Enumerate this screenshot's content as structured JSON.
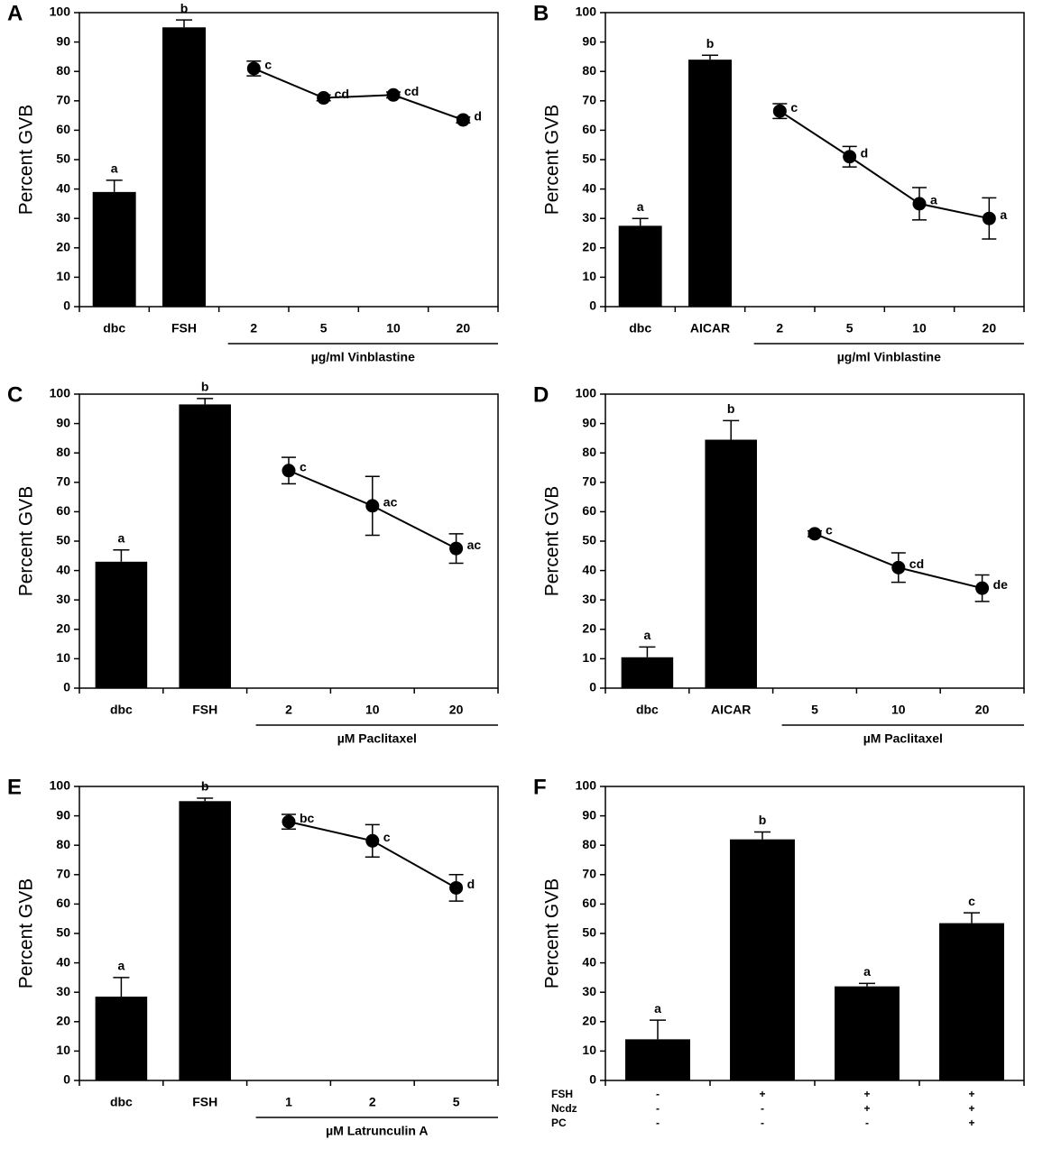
{
  "chart_data": [
    {
      "panel": "A",
      "type": "combo",
      "ylabel": "Percent GVB",
      "ylim": [
        0,
        100
      ],
      "yticks": [
        0,
        10,
        20,
        30,
        40,
        50,
        60,
        70,
        80,
        90,
        100
      ],
      "categories": [
        "dbc",
        "FSH",
        "2",
        "5",
        "10",
        "20"
      ],
      "group_label": "µg/ml Vinblastine",
      "bars": {
        "values": [
          39,
          95
        ],
        "errors": [
          4,
          2.5
        ],
        "letters": [
          "a",
          "b"
        ]
      },
      "line": {
        "values": [
          81,
          71,
          72,
          63.5
        ],
        "errors": [
          2.5,
          1,
          1,
          1
        ],
        "letters": [
          "c",
          "cd",
          "cd",
          "d"
        ]
      }
    },
    {
      "panel": "B",
      "type": "combo",
      "ylabel": "Percent GVB",
      "ylim": [
        0,
        100
      ],
      "yticks": [
        0,
        10,
        20,
        30,
        40,
        50,
        60,
        70,
        80,
        90,
        100
      ],
      "categories": [
        "dbc",
        "AICAR",
        "2",
        "5",
        "10",
        "20"
      ],
      "group_label": "µg/ml Vinblastine",
      "bars": {
        "values": [
          27.5,
          84
        ],
        "errors": [
          2.5,
          1.5
        ],
        "letters": [
          "a",
          "b"
        ]
      },
      "line": {
        "values": [
          66.5,
          51,
          35,
          30
        ],
        "errors": [
          2.5,
          3.5,
          5.5,
          7
        ],
        "letters": [
          "c",
          "d",
          "a",
          "a"
        ]
      }
    },
    {
      "panel": "C",
      "type": "combo",
      "ylabel": "Percent GVB",
      "ylim": [
        0,
        100
      ],
      "yticks": [
        0,
        10,
        20,
        30,
        40,
        50,
        60,
        70,
        80,
        90,
        100
      ],
      "categories": [
        "dbc",
        "FSH",
        "2",
        "10",
        "20"
      ],
      "group_label": "µM Paclitaxel",
      "bars": {
        "values": [
          43,
          96.5
        ],
        "errors": [
          4,
          2
        ],
        "letters": [
          "a",
          "b"
        ]
      },
      "line": {
        "values": [
          74,
          62,
          47.5
        ],
        "errors": [
          4.5,
          10,
          5
        ],
        "letters": [
          "c",
          "ac",
          "ac"
        ]
      }
    },
    {
      "panel": "D",
      "type": "combo",
      "ylabel": "Percent GVB",
      "ylim": [
        0,
        100
      ],
      "yticks": [
        0,
        10,
        20,
        30,
        40,
        50,
        60,
        70,
        80,
        90,
        100
      ],
      "categories": [
        "dbc",
        "AICAR",
        "5",
        "10",
        "20"
      ],
      "group_label": "µM Paclitaxel",
      "bars": {
        "values": [
          10.5,
          84.5
        ],
        "errors": [
          3.5,
          6.5
        ],
        "letters": [
          "a",
          "b"
        ]
      },
      "line": {
        "values": [
          52.5,
          41,
          34
        ],
        "errors": [
          1,
          5,
          4.5
        ],
        "letters": [
          "c",
          "cd",
          "de"
        ]
      }
    },
    {
      "panel": "E",
      "type": "combo",
      "ylabel": "Percent GVB",
      "ylim": [
        0,
        100
      ],
      "yticks": [
        0,
        10,
        20,
        30,
        40,
        50,
        60,
        70,
        80,
        90,
        100
      ],
      "categories": [
        "dbc",
        "FSH",
        "1",
        "2",
        "5"
      ],
      "group_label": "µM Latrunculin A",
      "bars": {
        "values": [
          28.5,
          95
        ],
        "errors": [
          6.5,
          1
        ],
        "letters": [
          "a",
          "b"
        ]
      },
      "line": {
        "values": [
          88,
          81.5,
          65.5
        ],
        "errors": [
          2.5,
          5.5,
          4.5
        ],
        "letters": [
          "bc",
          "c",
          "d"
        ]
      }
    },
    {
      "panel": "F",
      "type": "bar",
      "ylabel": "Percent GVB",
      "ylim": [
        0,
        100
      ],
      "yticks": [
        0,
        10,
        20,
        30,
        40,
        50,
        60,
        70,
        80,
        90,
        100
      ],
      "bars": {
        "values": [
          14,
          82,
          32,
          53.5
        ],
        "errors": [
          6.5,
          2.5,
          1,
          3.5
        ],
        "letters": [
          "a",
          "b",
          "a",
          "c"
        ]
      },
      "rows": [
        {
          "label": "FSH",
          "signs": [
            "-",
            "+",
            "+",
            "+"
          ]
        },
        {
          "label": "Ncdz",
          "signs": [
            "-",
            "-",
            "+",
            "+"
          ]
        },
        {
          "label": "PC",
          "signs": [
            "-",
            "-",
            "-",
            "+"
          ]
        }
      ]
    }
  ]
}
